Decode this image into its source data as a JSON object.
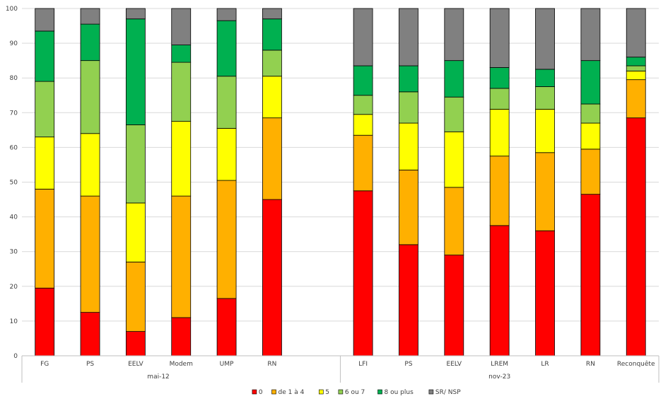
{
  "chart_data": {
    "type": "bar",
    "stacked": true,
    "ylim": [
      0,
      100
    ],
    "y_ticks": [
      0,
      10,
      20,
      30,
      40,
      50,
      60,
      70,
      80,
      90,
      100
    ],
    "grid": true,
    "legend_position": "bottom",
    "groups": [
      {
        "name": "mai-12",
        "categories": [
          "FG",
          "PS",
          "EELV",
          "Modem",
          "UMP",
          "RN"
        ]
      },
      {
        "name": "nov-23",
        "categories": [
          "LFI",
          "PS",
          "EELV",
          "LREM",
          "LR",
          "RN",
          "Reconquête"
        ]
      }
    ],
    "categories": [
      "FG",
      "PS",
      "EELV",
      "Modem",
      "UMP",
      "RN",
      "LFI",
      "PS",
      "EELV",
      "LREM",
      "LR",
      "RN",
      "Reconquête"
    ],
    "series": [
      {
        "name": "0",
        "color": "#ff0000",
        "values": [
          19.5,
          12.5,
          7,
          11,
          16.5,
          45,
          47.5,
          32,
          29,
          37.5,
          36,
          46.5,
          68.5
        ]
      },
      {
        "name": "de 1 à 4",
        "color": "#ffb000",
        "values": [
          28.5,
          33.5,
          20,
          35,
          34,
          23.5,
          16,
          21.5,
          19.5,
          20,
          22.5,
          13,
          11
        ]
      },
      {
        "name": "5",
        "color": "#ffff00",
        "values": [
          15,
          18,
          17,
          21.5,
          15,
          12,
          6,
          13.5,
          16,
          13.5,
          12.5,
          7.5,
          2.5
        ]
      },
      {
        "name": "6 ou 7",
        "color": "#92d050",
        "values": [
          16,
          21,
          22.5,
          17,
          15,
          7.5,
          5.5,
          9,
          10,
          6,
          6.5,
          5.5,
          1.5
        ]
      },
      {
        "name": "8 ou plus",
        "color": "#00b050",
        "values": [
          14.5,
          10.5,
          30.5,
          5,
          16,
          9,
          8.5,
          7.5,
          10.5,
          6,
          5,
          12.5,
          2.5
        ]
      },
      {
        "name": "SR/ NSP",
        "color": "#808080",
        "values": [
          6.5,
          4.5,
          3,
          10.5,
          3.5,
          3,
          16.5,
          16.5,
          15,
          17,
          17.5,
          15,
          14
        ]
      }
    ]
  }
}
